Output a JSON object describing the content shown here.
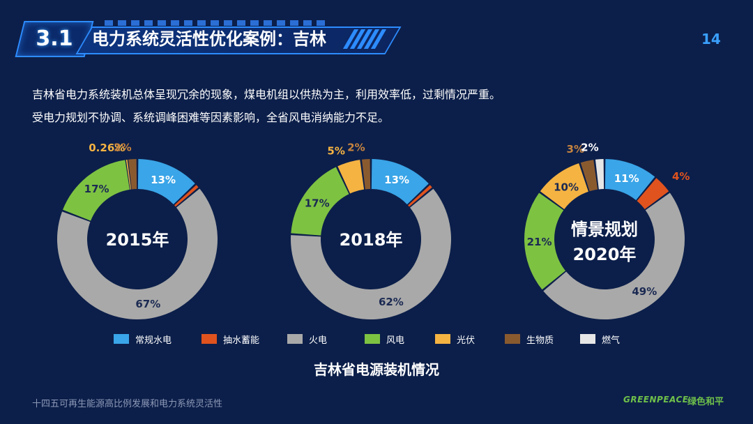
{
  "header": {
    "section_number": "3.1",
    "title": "电力系统灵活性优化案例：吉林",
    "page_number": "14"
  },
  "intro": {
    "line1": "吉林省电力系统装机总体呈现冗余的现象，煤电机组以供热为主，利用效率低，过剩情况严重。",
    "line2": "受电力规划不协调、系统调峰困难等因素影响，全省风电消纳能力不足。"
  },
  "colors": {
    "background": "#0c1f4a",
    "accent": "#2d8cff",
    "hydro": "#3aa5e8",
    "pumped_storage": "#e0531e",
    "thermal": "#a9a9a9",
    "wind": "#7ec242",
    "solar": "#f5b342",
    "biomass": "#8a5a2f",
    "gas": "#e6e6e6"
  },
  "chart_data": {
    "type": "pie",
    "donut": true,
    "caption": "吉林省电源装机情况",
    "categories": [
      "常规水电",
      "抽水蓄能",
      "火电",
      "风电",
      "光伏",
      "生物质",
      "燃气"
    ],
    "series": [
      {
        "center_label": [
          "2015年"
        ],
        "values": [
          13,
          1,
          67,
          17,
          0.26,
          2,
          0
        ],
        "labels": [
          "13%",
          "",
          "67%",
          "17%",
          "0.26%",
          "2%",
          ""
        ]
      },
      {
        "center_label": [
          "2018年"
        ],
        "values": [
          13,
          1,
          62,
          17,
          5,
          2,
          0
        ],
        "labels": [
          "13%",
          "",
          "62%",
          "17%",
          "5%",
          "2%",
          ""
        ]
      },
      {
        "center_label": [
          "情景规划",
          "2020年"
        ],
        "values": [
          11,
          4,
          49,
          21,
          10,
          3,
          2
        ],
        "labels": [
          "11%",
          "4%",
          "49%",
          "21%",
          "10%",
          "3%",
          "2%"
        ]
      }
    ]
  },
  "footer": {
    "text": "十四五可再生能源高比例发展和电力系统灵活性",
    "logo_en": "GREENPEACE",
    "logo_cn": "绿色和平"
  }
}
